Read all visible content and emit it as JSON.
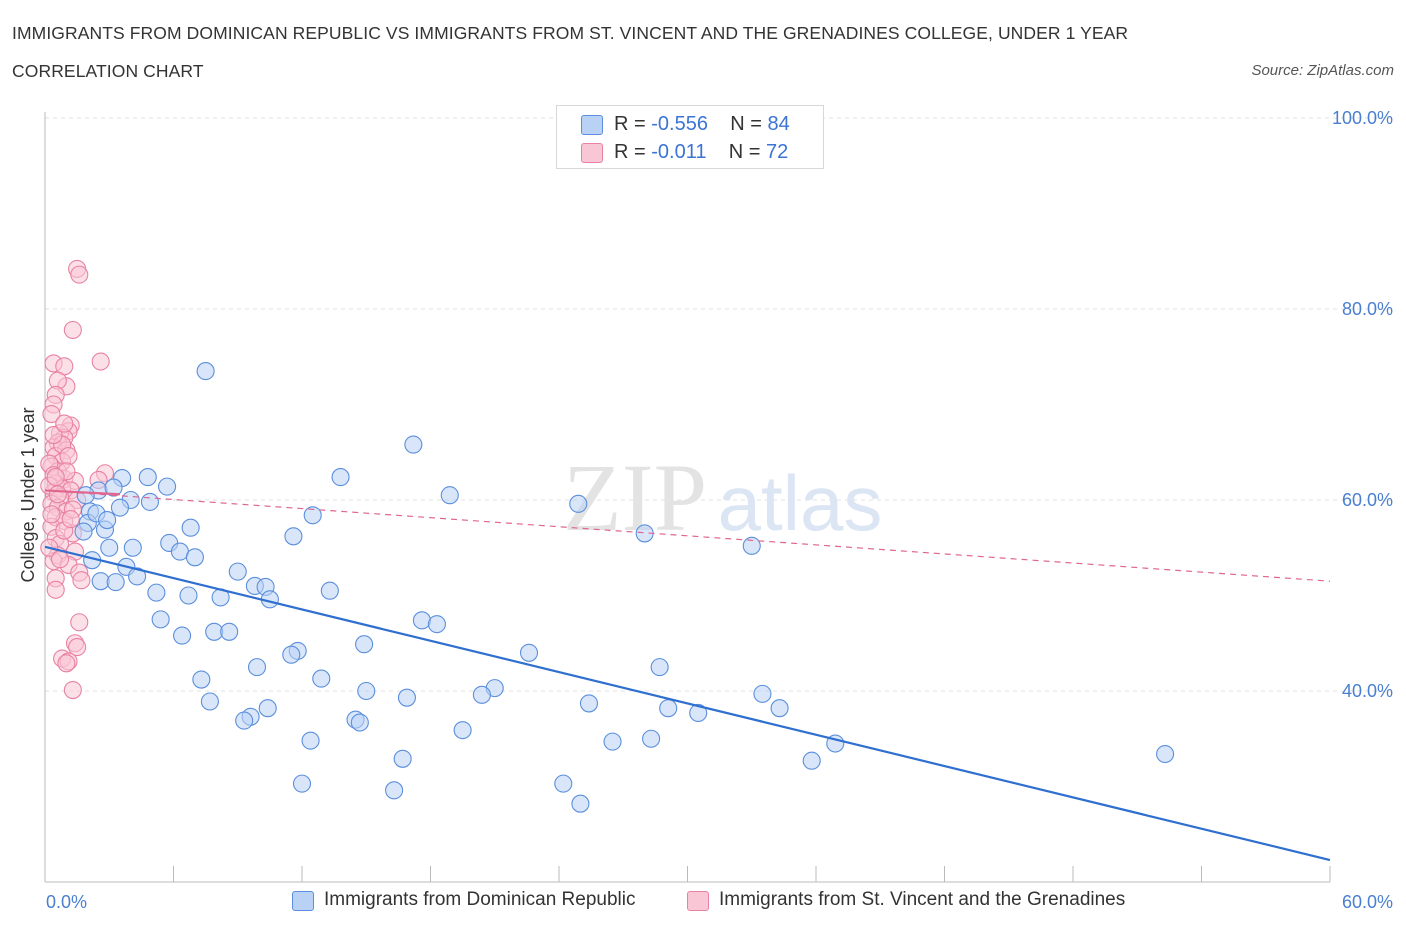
{
  "header": {
    "title_line1": "IMMIGRANTS FROM DOMINICAN REPUBLIC VS IMMIGRANTS FROM ST. VINCENT AND THE GRENADINES COLLEGE, UNDER 1 YEAR",
    "title_line2": "CORRELATION CHART",
    "source": "Source: ZipAtlas.com"
  },
  "colors": {
    "blue_fill": "#b9d1f5",
    "blue_stroke": "#5b8fdc",
    "blue_line": "#2f6fd0",
    "pink_fill": "#f9c6d5",
    "pink_stroke": "#e882a4",
    "pink_line": "#e0668f",
    "grid": "#e0e0e0",
    "tick_text": "#4a7fd0"
  },
  "legend": {
    "rows": [
      {
        "r_label": "R = ",
        "r_value": "-0.556",
        "n_label": "N = ",
        "n_value": "84"
      },
      {
        "r_label": "R = ",
        "r_value": " -0.011",
        "n_label": "N = ",
        "n_value": "72"
      }
    ]
  },
  "watermark": {
    "part1": "ZIP",
    "part2": "atlas"
  },
  "chart_data": {
    "type": "scatter",
    "title": "IMMIGRANTS FROM DOMINICAN REPUBLIC VS IMMIGRANTS FROM ST. VINCENT AND THE GRENADINES COLLEGE, UNDER 1 YEAR CORRELATION CHART",
    "ylabel": "College, Under 1 year",
    "xlim": [
      0,
      60
    ],
    "ylim": [
      20,
      100
    ],
    "x_tick_labels": [
      "0.0%",
      "60.0%"
    ],
    "y_ticks": [
      40,
      60,
      80,
      100
    ],
    "y_tick_labels": [
      "40.0%",
      "60.0%",
      "80.0%",
      "100.0%"
    ],
    "grid": "horizontal dashed",
    "legend_position": "top-center",
    "series": [
      {
        "name": "Immigrants from Dominican Republic",
        "color": "#5b8fdc",
        "trend": {
          "x0": 0,
          "y0": 55.1,
          "x1": 60,
          "y1": 22.3,
          "style": "solid"
        },
        "points": [
          [
            7.5,
            73.5
          ],
          [
            17.2,
            65.8
          ],
          [
            13.8,
            62.4
          ],
          [
            3.6,
            62.3
          ],
          [
            4.8,
            62.4
          ],
          [
            5.7,
            61.4
          ],
          [
            18.9,
            60.5
          ],
          [
            24.9,
            59.6
          ],
          [
            4.9,
            59.8
          ],
          [
            2.1,
            58.8
          ],
          [
            12.5,
            58.4
          ],
          [
            2.0,
            57.6
          ],
          [
            11.6,
            56.2
          ],
          [
            2.8,
            56.9
          ],
          [
            28.0,
            56.5
          ],
          [
            5.8,
            55.5
          ],
          [
            3.0,
            55.0
          ],
          [
            4.1,
            55.0
          ],
          [
            33.0,
            55.2
          ],
          [
            6.3,
            54.6
          ],
          [
            7.0,
            54.0
          ],
          [
            2.2,
            53.7
          ],
          [
            3.8,
            53.0
          ],
          [
            9.0,
            52.5
          ],
          [
            4.3,
            52.0
          ],
          [
            2.6,
            51.5
          ],
          [
            3.3,
            51.4
          ],
          [
            9.8,
            51.0
          ],
          [
            10.3,
            50.9
          ],
          [
            13.3,
            50.5
          ],
          [
            5.2,
            50.3
          ],
          [
            6.7,
            50.0
          ],
          [
            8.2,
            49.8
          ],
          [
            10.5,
            49.6
          ],
          [
            17.6,
            47.4
          ],
          [
            18.3,
            47.0
          ],
          [
            5.4,
            47.5
          ],
          [
            7.9,
            46.2
          ],
          [
            8.6,
            46.2
          ],
          [
            14.9,
            44.9
          ],
          [
            6.4,
            45.8
          ],
          [
            11.8,
            44.2
          ],
          [
            11.5,
            43.8
          ],
          [
            22.6,
            44.0
          ],
          [
            9.9,
            42.5
          ],
          [
            28.7,
            42.5
          ],
          [
            7.3,
            41.2
          ],
          [
            12.9,
            41.3
          ],
          [
            15.0,
            40.0
          ],
          [
            21.0,
            40.3
          ],
          [
            20.4,
            39.6
          ],
          [
            16.9,
            39.3
          ],
          [
            33.5,
            39.7
          ],
          [
            7.7,
            38.9
          ],
          [
            25.4,
            38.7
          ],
          [
            10.4,
            38.2
          ],
          [
            29.1,
            38.2
          ],
          [
            34.3,
            38.2
          ],
          [
            30.5,
            37.7
          ],
          [
            9.6,
            37.3
          ],
          [
            9.3,
            36.9
          ],
          [
            14.5,
            37.0
          ],
          [
            14.7,
            36.7
          ],
          [
            19.5,
            35.9
          ],
          [
            12.4,
            34.8
          ],
          [
            26.5,
            34.7
          ],
          [
            28.3,
            35.0
          ],
          [
            36.9,
            34.5
          ],
          [
            16.7,
            32.9
          ],
          [
            35.8,
            32.7
          ],
          [
            52.3,
            33.4
          ],
          [
            12.0,
            30.3
          ],
          [
            24.2,
            30.3
          ],
          [
            16.3,
            29.6
          ],
          [
            25.0,
            28.2
          ],
          [
            2.5,
            61.0
          ],
          [
            3.2,
            61.3
          ],
          [
            2.4,
            58.6
          ],
          [
            4.0,
            60.0
          ],
          [
            1.8,
            56.7
          ],
          [
            6.8,
            57.1
          ],
          [
            3.5,
            59.2
          ],
          [
            2.9,
            57.9
          ],
          [
            1.9,
            60.5
          ]
        ]
      },
      {
        "name": "Immigrants from St. Vincent and the Grenadines",
        "color": "#e882a4",
        "trend": {
          "x0": 0,
          "y0": 61.0,
          "x1": 60,
          "y1": 51.5,
          "style": "dashed"
        },
        "trend_solid_segment": {
          "x0": 0,
          "y0": 61.0,
          "x1": 3.5,
          "y1": 60.6
        },
        "points": [
          [
            1.5,
            84.2
          ],
          [
            1.6,
            83.6
          ],
          [
            1.3,
            77.8
          ],
          [
            2.6,
            74.5
          ],
          [
            0.4,
            74.3
          ],
          [
            0.9,
            74.0
          ],
          [
            1.0,
            71.9
          ],
          [
            0.6,
            72.5
          ],
          [
            0.5,
            71.0
          ],
          [
            0.4,
            70.0
          ],
          [
            0.3,
            69.0
          ],
          [
            1.2,
            67.8
          ],
          [
            1.1,
            67.2
          ],
          [
            0.7,
            67.0
          ],
          [
            0.9,
            66.5
          ],
          [
            0.6,
            66.0
          ],
          [
            0.4,
            65.5
          ],
          [
            1.0,
            65.2
          ],
          [
            0.5,
            64.6
          ],
          [
            0.8,
            64.0
          ],
          [
            0.3,
            63.5
          ],
          [
            0.6,
            63.0
          ],
          [
            2.8,
            62.8
          ],
          [
            0.9,
            62.2
          ],
          [
            1.4,
            62.0
          ],
          [
            2.5,
            62.1
          ],
          [
            0.5,
            61.7
          ],
          [
            0.8,
            61.2
          ],
          [
            1.2,
            61.0
          ],
          [
            0.4,
            60.8
          ],
          [
            0.7,
            60.3
          ],
          [
            1.5,
            60.0
          ],
          [
            0.3,
            59.6
          ],
          [
            0.6,
            59.2
          ],
          [
            1.0,
            58.8
          ],
          [
            0.5,
            58.2
          ],
          [
            0.9,
            57.8
          ],
          [
            0.3,
            57.2
          ],
          [
            1.3,
            56.5
          ],
          [
            0.5,
            56.0
          ],
          [
            0.7,
            55.4
          ],
          [
            1.4,
            54.6
          ],
          [
            0.6,
            54.2
          ],
          [
            0.4,
            53.6
          ],
          [
            1.1,
            53.2
          ],
          [
            1.6,
            52.4
          ],
          [
            0.5,
            51.8
          ],
          [
            1.7,
            51.6
          ],
          [
            0.5,
            50.6
          ],
          [
            1.6,
            47.2
          ],
          [
            1.4,
            45.0
          ],
          [
            1.5,
            44.6
          ],
          [
            0.8,
            43.4
          ],
          [
            1.1,
            43.1
          ],
          [
            1.0,
            42.9
          ],
          [
            1.3,
            40.1
          ],
          [
            0.2,
            63.8
          ],
          [
            0.4,
            62.6
          ],
          [
            0.8,
            65.8
          ],
          [
            1.1,
            64.6
          ],
          [
            0.2,
            61.5
          ],
          [
            0.6,
            60.6
          ],
          [
            0.3,
            58.5
          ],
          [
            0.9,
            56.8
          ],
          [
            0.2,
            55.0
          ],
          [
            0.7,
            53.8
          ],
          [
            1.3,
            59.0
          ],
          [
            0.4,
            66.8
          ],
          [
            0.9,
            68.0
          ],
          [
            1.0,
            63.0
          ],
          [
            0.5,
            62.4
          ],
          [
            1.2,
            58.0
          ]
        ]
      }
    ]
  }
}
